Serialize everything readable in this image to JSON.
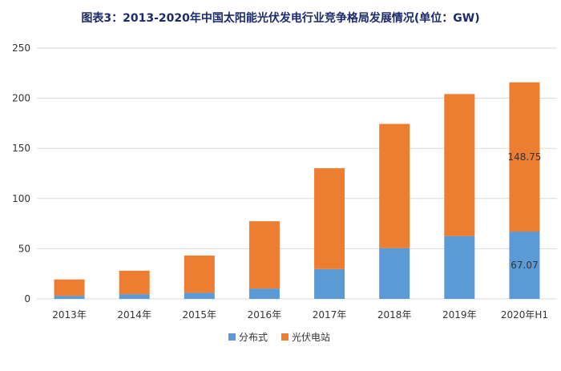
{
  "page": {
    "title": "图表3：2013-2020年中国太阳能光伏发电行业竞争格局发展情况(单位：GW)"
  },
  "chart_data": {
    "type": "bar",
    "stacked": true,
    "categories": [
      "2013年",
      "2014年",
      "2015年",
      "2016年",
      "2017年",
      "2018年",
      "2019年",
      "2020年H1"
    ],
    "series": [
      {
        "name": "分布式",
        "color": "#5b9bd5",
        "values": [
          3.1,
          4.7,
          6.1,
          10.3,
          29.7,
          50.6,
          62.6,
          67.07
        ]
      },
      {
        "name": "光伏电站",
        "color": "#ed7d31",
        "values": [
          16.3,
          23.4,
          37.1,
          67.1,
          100.6,
          123.8,
          141.6,
          148.75
        ]
      }
    ],
    "data_labels": [
      {
        "series": 0,
        "index": 7,
        "text": "67.07"
      },
      {
        "series": 1,
        "index": 7,
        "text": "148.75"
      }
    ],
    "yticks": [
      "0",
      "50",
      "100",
      "150",
      "200",
      "250"
    ],
    "ylim": [
      0,
      250
    ],
    "grid": true,
    "legend": "bottom"
  }
}
